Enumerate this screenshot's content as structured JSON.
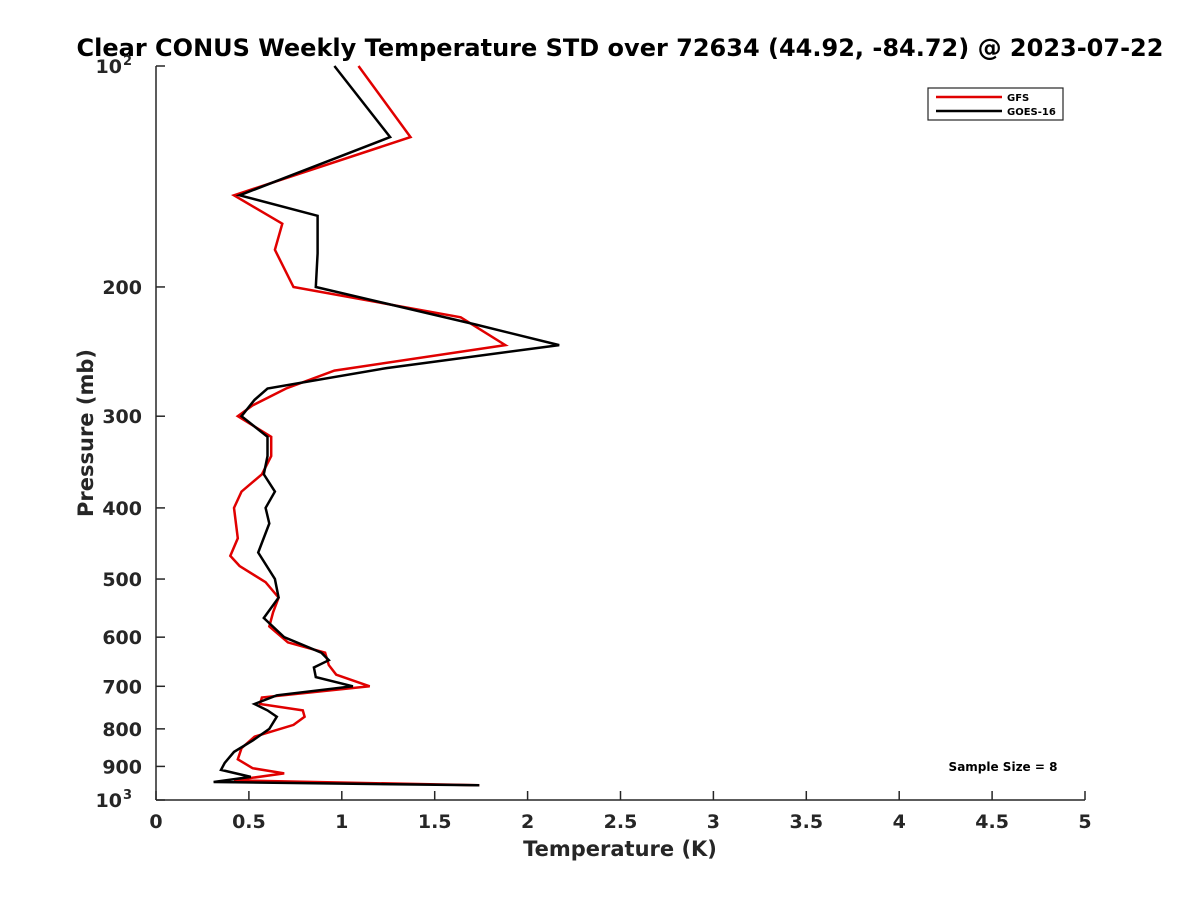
{
  "chart_data": {
    "type": "line",
    "title": "Clear CONUS Weekly Temperature STD over 72634 (44.92, -84.72) @ 2023-07-22",
    "xlabel": "Temperature (K)",
    "ylabel": "Pressure (mb)",
    "xlim": [
      0,
      5
    ],
    "ylim": [
      100,
      1000
    ],
    "yscale": "log",
    "y_reversed": true,
    "grid": false,
    "x_ticks": [
      "0",
      "0.5",
      "1",
      "1.5",
      "2",
      "2.5",
      "3",
      "3.5",
      "4",
      "4.5",
      "5"
    ],
    "y_ticks": [
      {
        "value": 100,
        "base": "10",
        "exp": "2"
      },
      {
        "value": 200,
        "label": "200"
      },
      {
        "value": 300,
        "label": "300"
      },
      {
        "value": 400,
        "label": "400"
      },
      {
        "value": 500,
        "label": "500"
      },
      {
        "value": 600,
        "label": "600"
      },
      {
        "value": 700,
        "label": "700"
      },
      {
        "value": 800,
        "label": "800"
      },
      {
        "value": 900,
        "label": "900"
      },
      {
        "value": 1000,
        "base": "10",
        "exp": "3"
      }
    ],
    "legend_position": "top-right",
    "annotation": "Sample Size = 8",
    "series": [
      {
        "name": "GFS",
        "color": "#e00000",
        "points": [
          [
            1.09,
            100
          ],
          [
            1.37,
            125
          ],
          [
            0.42,
            150
          ],
          [
            0.68,
            164
          ],
          [
            0.64,
            178
          ],
          [
            0.74,
            200
          ],
          [
            1.64,
            220
          ],
          [
            1.88,
            240
          ],
          [
            0.96,
            260
          ],
          [
            0.7,
            275
          ],
          [
            0.52,
            290
          ],
          [
            0.44,
            300
          ],
          [
            0.62,
            320
          ],
          [
            0.62,
            340
          ],
          [
            0.57,
            360
          ],
          [
            0.46,
            380
          ],
          [
            0.42,
            400
          ],
          [
            0.44,
            440
          ],
          [
            0.4,
            465
          ],
          [
            0.45,
            480
          ],
          [
            0.59,
            505
          ],
          [
            0.66,
            530
          ],
          [
            0.63,
            555
          ],
          [
            0.61,
            580
          ],
          [
            0.71,
            610
          ],
          [
            0.91,
            630
          ],
          [
            0.93,
            655
          ],
          [
            0.97,
            675
          ],
          [
            1.15,
            700
          ],
          [
            0.57,
            725
          ],
          [
            0.56,
            740
          ],
          [
            0.79,
            755
          ],
          [
            0.8,
            770
          ],
          [
            0.74,
            790
          ],
          [
            0.53,
            820
          ],
          [
            0.46,
            850
          ],
          [
            0.44,
            880
          ],
          [
            0.52,
            905
          ],
          [
            0.69,
            920
          ],
          [
            0.42,
            940
          ],
          [
            1.74,
            955
          ]
        ]
      },
      {
        "name": "GOES-16",
        "color": "#000000",
        "points": [
          [
            0.96,
            100
          ],
          [
            1.26,
            125
          ],
          [
            0.45,
            150
          ],
          [
            0.87,
            160
          ],
          [
            0.87,
            180
          ],
          [
            0.86,
            200
          ],
          [
            1.72,
            225
          ],
          [
            2.17,
            240
          ],
          [
            1.24,
            258
          ],
          [
            0.6,
            275
          ],
          [
            0.53,
            285
          ],
          [
            0.46,
            300
          ],
          [
            0.6,
            320
          ],
          [
            0.6,
            340
          ],
          [
            0.58,
            360
          ],
          [
            0.64,
            380
          ],
          [
            0.59,
            400
          ],
          [
            0.61,
            420
          ],
          [
            0.55,
            460
          ],
          [
            0.64,
            500
          ],
          [
            0.66,
            530
          ],
          [
            0.58,
            565
          ],
          [
            0.69,
            600
          ],
          [
            0.89,
            630
          ],
          [
            0.93,
            645
          ],
          [
            0.85,
            660
          ],
          [
            0.86,
            680
          ],
          [
            1.06,
            700
          ],
          [
            0.65,
            720
          ],
          [
            0.53,
            740
          ],
          [
            0.6,
            755
          ],
          [
            0.65,
            770
          ],
          [
            0.61,
            800
          ],
          [
            0.52,
            830
          ],
          [
            0.42,
            860
          ],
          [
            0.37,
            890
          ],
          [
            0.35,
            910
          ],
          [
            0.51,
            930
          ],
          [
            0.31,
            945
          ],
          [
            1.74,
            955
          ]
        ]
      }
    ]
  }
}
